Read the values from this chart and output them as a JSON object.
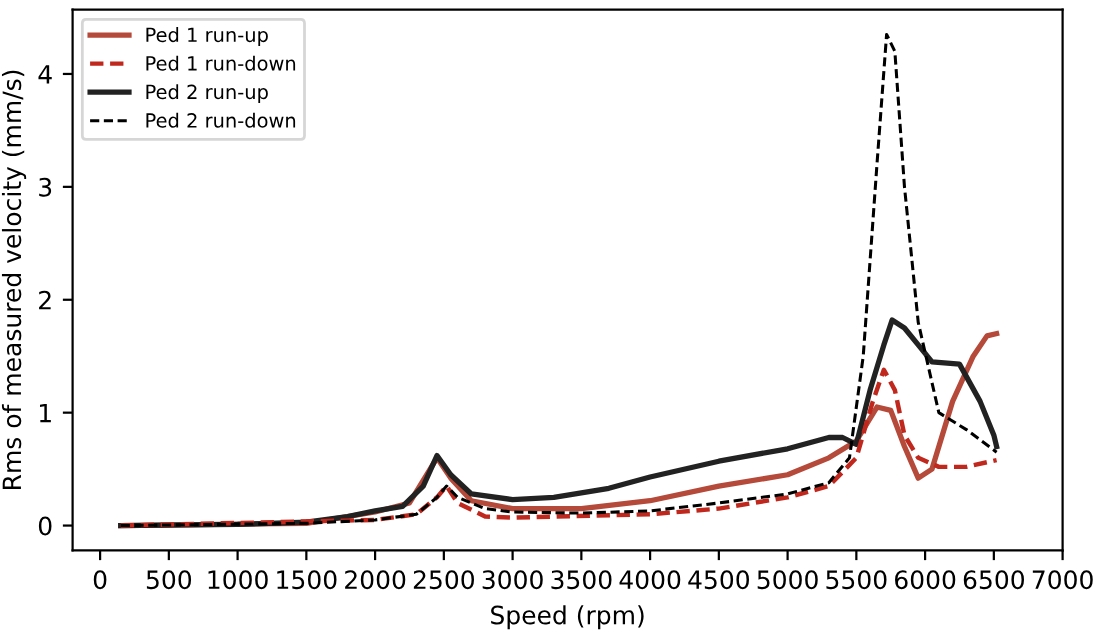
{
  "chart_data": {
    "type": "line",
    "xlabel": "Speed (rpm)",
    "ylabel": "Rms of measured velocity (mm/s)",
    "xlim": [
      -200,
      7000
    ],
    "ylim": [
      -0.22,
      4.57
    ],
    "xticks": [
      0,
      500,
      1000,
      1500,
      2000,
      2500,
      3000,
      3500,
      4000,
      4500,
      5000,
      5500,
      6000,
      6500,
      7000
    ],
    "yticks": [
      0,
      1,
      2,
      3,
      4
    ],
    "grid": false,
    "legend": "top left",
    "series": [
      {
        "name": "Ped 1 run-up",
        "color": "#b5493a",
        "line_style": "solid",
        "x": [
          150,
          1500,
          2000,
          2250,
          2450,
          2550,
          2700,
          3000,
          3500,
          4000,
          4500,
          5000,
          5300,
          5500,
          5650,
          5750,
          5850,
          5950,
          6050,
          6200,
          6350,
          6450,
          6520
        ],
        "values": [
          0,
          0.02,
          0.12,
          0.2,
          0.6,
          0.42,
          0.22,
          0.15,
          0.15,
          0.22,
          0.35,
          0.45,
          0.6,
          0.75,
          1.05,
          1.02,
          0.7,
          0.42,
          0.5,
          1.1,
          1.5,
          1.68,
          1.7
        ]
      },
      {
        "name": "Ped 1 run-down",
        "color": "#c0281e",
        "line_style": "dashed",
        "x": [
          150,
          2000,
          2300,
          2450,
          2520,
          2600,
          2800,
          3000,
          4000,
          4500,
          5000,
          5300,
          5500,
          5620,
          5700,
          5780,
          5850,
          5950,
          6100,
          6300,
          6520
        ],
        "values": [
          0,
          0.05,
          0.1,
          0.25,
          0.35,
          0.2,
          0.08,
          0.07,
          0.1,
          0.15,
          0.25,
          0.35,
          0.6,
          1.1,
          1.38,
          1.2,
          0.8,
          0.6,
          0.52,
          0.52,
          0.58
        ]
      },
      {
        "name": "Ped 2 run-up",
        "color": "#222222",
        "line_style": "solid",
        "x": [
          150,
          1000,
          1500,
          1800,
          2000,
          2200,
          2350,
          2450,
          2550,
          2700,
          3000,
          3300,
          3700,
          4000,
          4500,
          5000,
          5300,
          5400,
          5500,
          5600,
          5700,
          5760,
          5850,
          5950,
          6050,
          6250,
          6400,
          6500,
          6520
        ],
        "values": [
          0,
          0.01,
          0.03,
          0.08,
          0.13,
          0.17,
          0.35,
          0.62,
          0.45,
          0.28,
          0.23,
          0.25,
          0.33,
          0.43,
          0.57,
          0.68,
          0.78,
          0.78,
          0.72,
          1.2,
          1.6,
          1.82,
          1.75,
          1.6,
          1.45,
          1.43,
          1.1,
          0.8,
          0.7
        ]
      },
      {
        "name": "Ped 2 run-down",
        "color": "#000000",
        "line_style": "dashed",
        "x": [
          150,
          1500,
          2000,
          2300,
          2450,
          2520,
          2600,
          2800,
          3000,
          3500,
          4000,
          4500,
          5000,
          5300,
          5450,
          5550,
          5650,
          5720,
          5780,
          5850,
          5950,
          6100,
          6300,
          6520
        ],
        "values": [
          0,
          0.02,
          0.05,
          0.1,
          0.25,
          0.35,
          0.25,
          0.15,
          0.12,
          0.11,
          0.13,
          0.2,
          0.28,
          0.38,
          0.6,
          1.5,
          3.2,
          4.35,
          4.2,
          3.0,
          1.8,
          1.0,
          0.85,
          0.65
        ]
      }
    ]
  }
}
